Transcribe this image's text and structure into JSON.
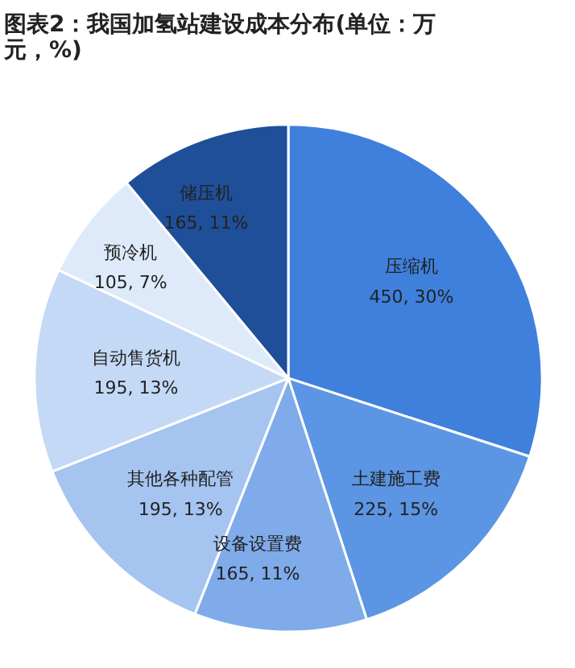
{
  "chart_data": {
    "type": "pie",
    "title": "图表2：我国加氢站建设成本分布(单位：万元，%)",
    "categories": [
      "压缩机",
      "土建施工费",
      "设备设置费",
      "其他各种配管",
      "自动售货机",
      "预冷机",
      "储压机"
    ],
    "values": [
      450,
      225,
      165,
      195,
      195,
      105,
      165
    ],
    "colors": [
      "#3f80dd",
      "#5b95e3",
      "#7fabea",
      "#a5c4f0",
      "#c4d9f6",
      "#deeafa",
      "#1f4f98"
    ],
    "value_labels": [
      "450, 30%",
      "225, 15%",
      "165, 11%",
      "195, 13%",
      "195, 13%",
      "105, 7%",
      "165, 11%"
    ]
  }
}
